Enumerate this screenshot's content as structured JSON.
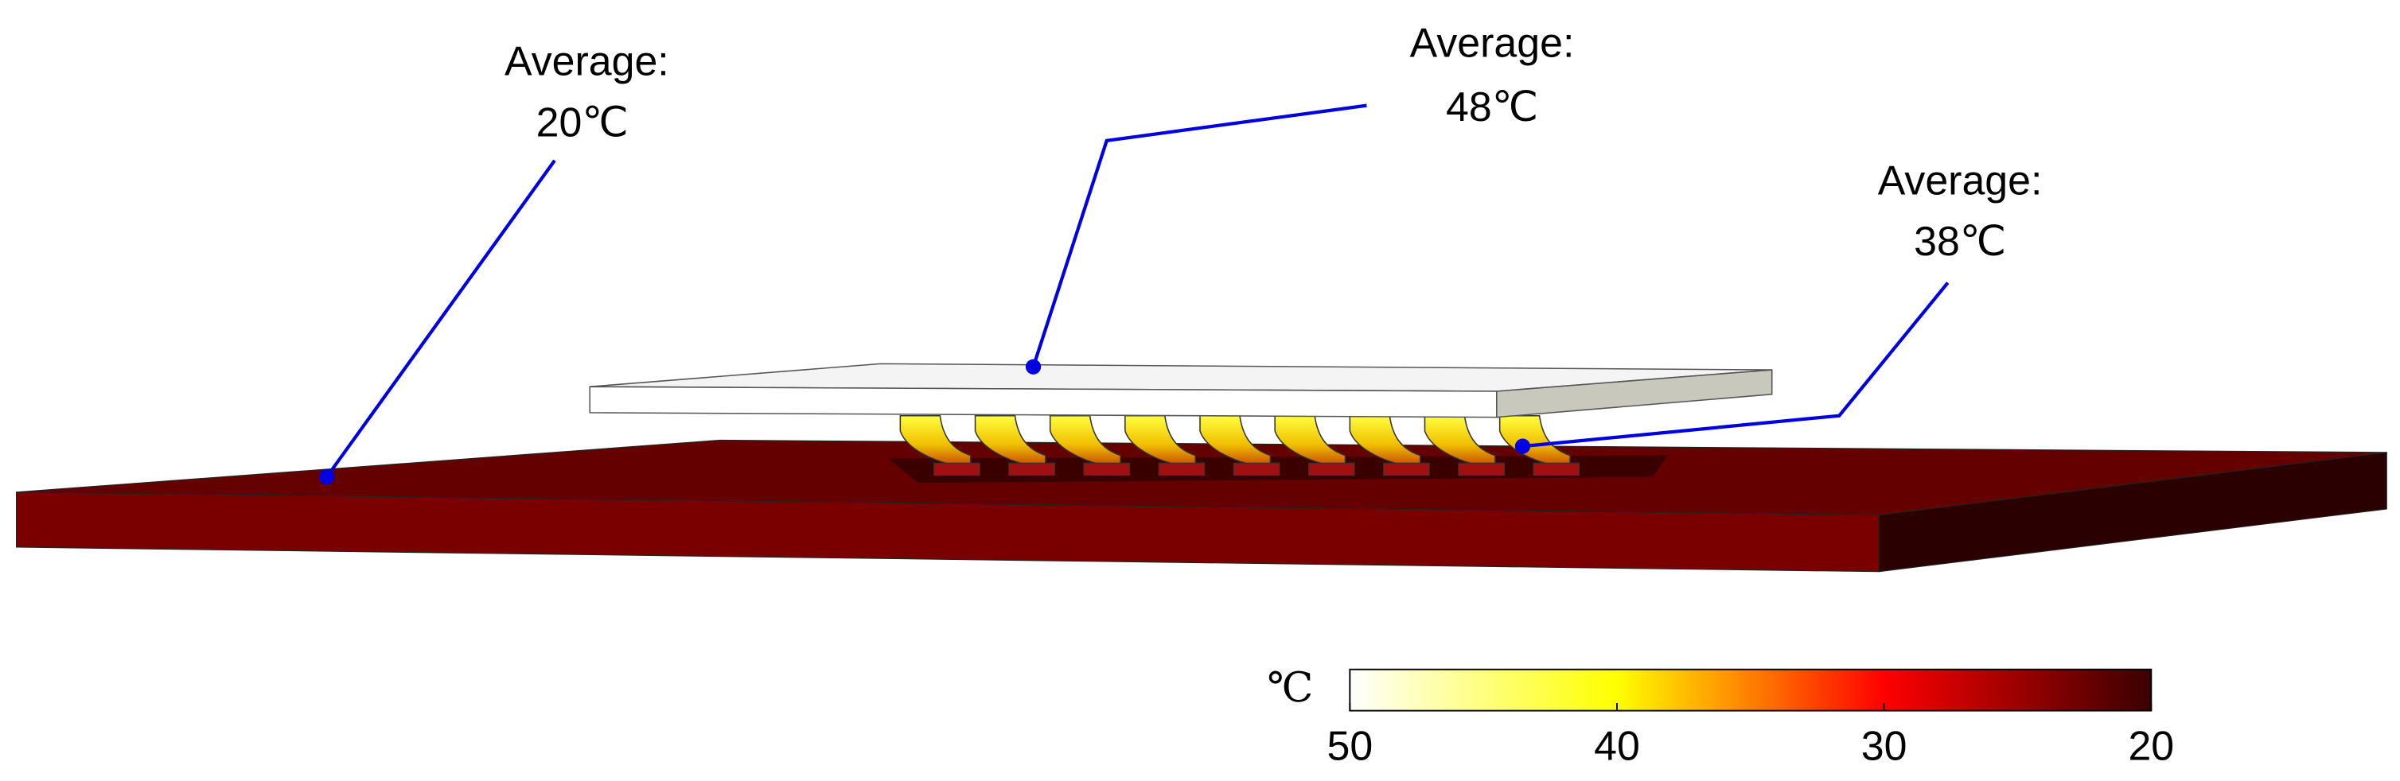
{
  "annotations": [
    {
      "label": "Average:",
      "value": "20℃"
    },
    {
      "label": "Average:",
      "value": "48℃"
    },
    {
      "label": "Average:",
      "value": "38℃"
    }
  ],
  "colorbar": {
    "unit": "℃",
    "lim": [
      50,
      20
    ],
    "ticks": [
      50,
      40,
      30,
      20
    ],
    "colors": [
      "#ffffff",
      "#ffff00",
      "#ff0000",
      "#3a0000"
    ]
  }
}
